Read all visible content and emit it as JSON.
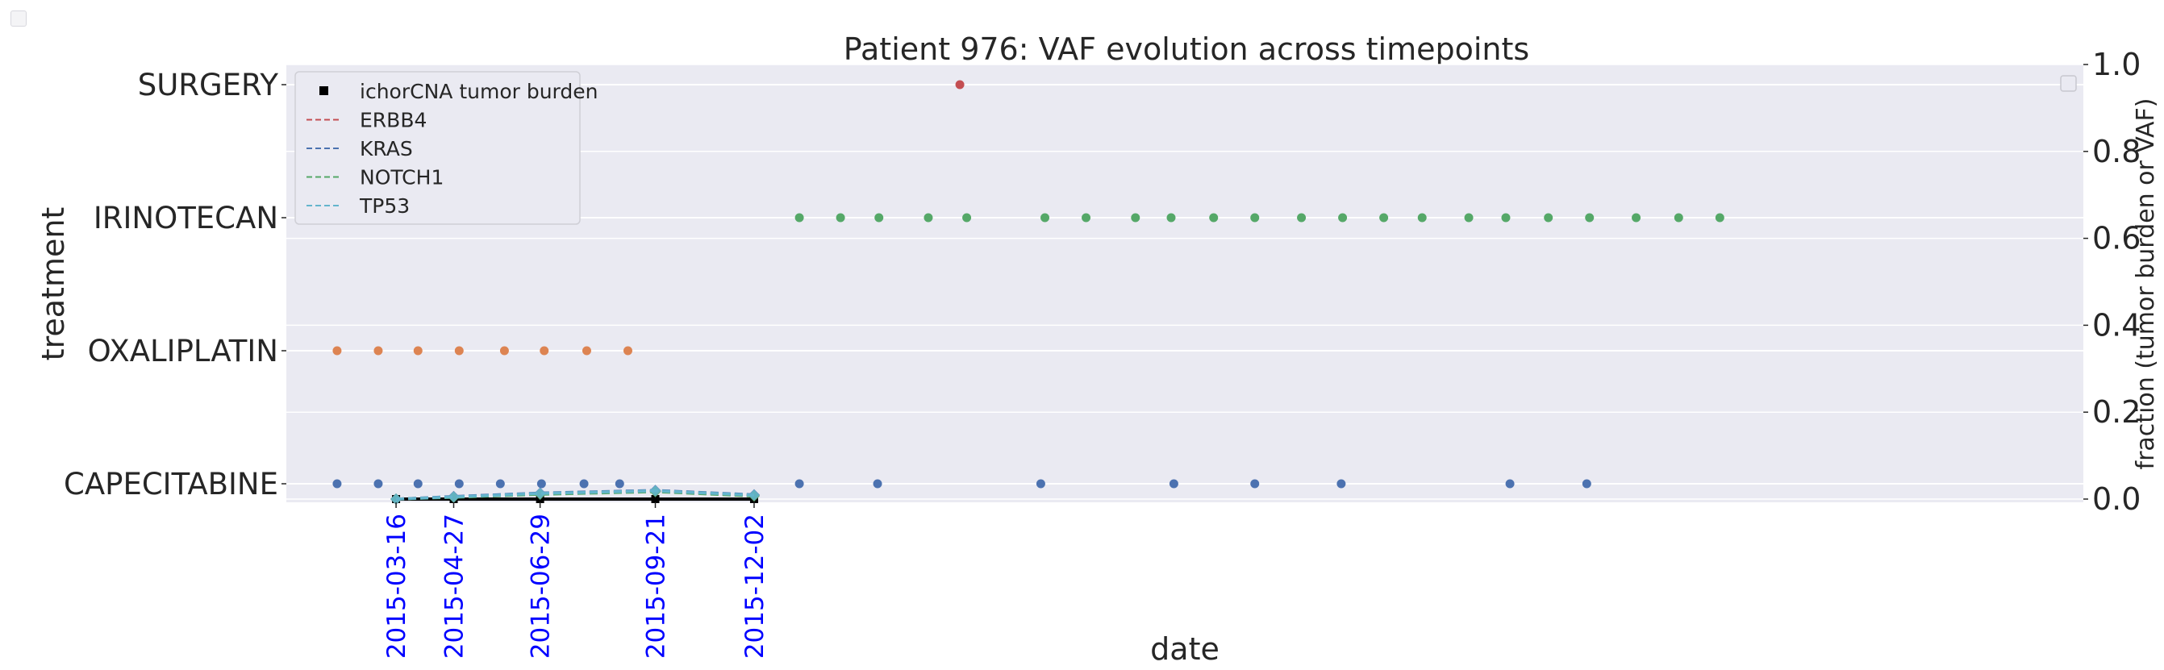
{
  "chart_data": {
    "type": "scatter",
    "title": "Patient 976: VAF evolution across timepoints",
    "xlabel": "date",
    "ylabel_left": "treatment",
    "ylabel_right": "fraction (tumor burden or VAF)",
    "y_left_categories": [
      "CAPECITABINE",
      "OXALIPLATIN",
      "IRINOTECAN",
      "SURGERY"
    ],
    "y_right_ticks": [
      "0.0",
      "0.2",
      "0.4",
      "0.6",
      "0.8",
      "1.0"
    ],
    "y_right_lim": [
      0,
      1
    ],
    "x_range": [
      "2014-12-26",
      "2018-07-28"
    ],
    "x_tick_labels": [
      "2015-03-16",
      "2015-04-27",
      "2015-06-29",
      "2015-09-21",
      "2015-12-02"
    ],
    "x_tick_color": "#0000ff",
    "grid": true,
    "legend_position": "top-left",
    "treatments": [
      {
        "name": "CAPECITABINE",
        "color": "#4c72b0",
        "dates": [
          "2015-02-01",
          "2015-03-03",
          "2015-04-01",
          "2015-05-01",
          "2015-05-31",
          "2015-06-30",
          "2015-07-31",
          "2015-08-26",
          "2016-01-04",
          "2016-03-01",
          "2016-06-28",
          "2016-10-03",
          "2016-12-01",
          "2017-02-02",
          "2017-06-05",
          "2017-07-31"
        ]
      },
      {
        "name": "OXALIPLATIN",
        "color": "#dd8452",
        "dates": [
          "2015-02-01",
          "2015-03-03",
          "2015-04-01",
          "2015-05-01",
          "2015-06-03",
          "2015-07-02",
          "2015-08-02",
          "2015-09-01"
        ]
      },
      {
        "name": "IRINOTECAN",
        "color": "#55a868",
        "dates": [
          "2016-01-04",
          "2016-02-03",
          "2016-03-02",
          "2016-04-07",
          "2016-05-05",
          "2016-07-01",
          "2016-07-31",
          "2016-09-05",
          "2016-10-01",
          "2016-11-01",
          "2016-12-01",
          "2017-01-04",
          "2017-02-03",
          "2017-03-05",
          "2017-04-02",
          "2017-05-06",
          "2017-06-02",
          "2017-07-03",
          "2017-08-02",
          "2017-09-05",
          "2017-10-06",
          "2017-11-05"
        ]
      },
      {
        "name": "SURGERY",
        "color": "#c44e52",
        "dates": [
          "2016-04-30"
        ]
      }
    ],
    "series": [
      {
        "name": "ichorCNA tumor burden",
        "color": "#000000",
        "marker": "square",
        "x": [
          "2015-03-16",
          "2015-04-27",
          "2015-06-29",
          "2015-09-21",
          "2015-12-02"
        ],
        "values": [
          0.0,
          0.0,
          0.0,
          0.0,
          0.0
        ]
      },
      {
        "name": "ERBB4",
        "color": "#c44e52",
        "linestyle": "dashed",
        "x": [
          "2015-03-16",
          "2015-04-27",
          "2015-06-29",
          "2015-09-21",
          "2015-12-02"
        ],
        "values": [
          0.0,
          0.005,
          0.012,
          0.018,
          0.008
        ]
      },
      {
        "name": "KRAS",
        "color": "#4c72b0",
        "linestyle": "dashed",
        "x": [
          "2015-03-16",
          "2015-04-27",
          "2015-06-29",
          "2015-09-21",
          "2015-12-02"
        ],
        "values": [
          0.0,
          0.006,
          0.014,
          0.02,
          0.01
        ]
      },
      {
        "name": "NOTCH1",
        "color": "#55a868",
        "linestyle": "dashed",
        "x": [
          "2015-03-16",
          "2015-04-27",
          "2015-06-29",
          "2015-09-21",
          "2015-12-02"
        ],
        "values": [
          0.0,
          0.004,
          0.011,
          0.017,
          0.007
        ]
      },
      {
        "name": "TP53",
        "color": "#64b5cd",
        "linestyle": "dashed",
        "x": [
          "2015-03-16",
          "2015-04-27",
          "2015-06-29",
          "2015-09-21",
          "2015-12-02"
        ],
        "values": [
          0.0,
          0.005,
          0.013,
          0.019,
          0.009
        ]
      }
    ]
  }
}
